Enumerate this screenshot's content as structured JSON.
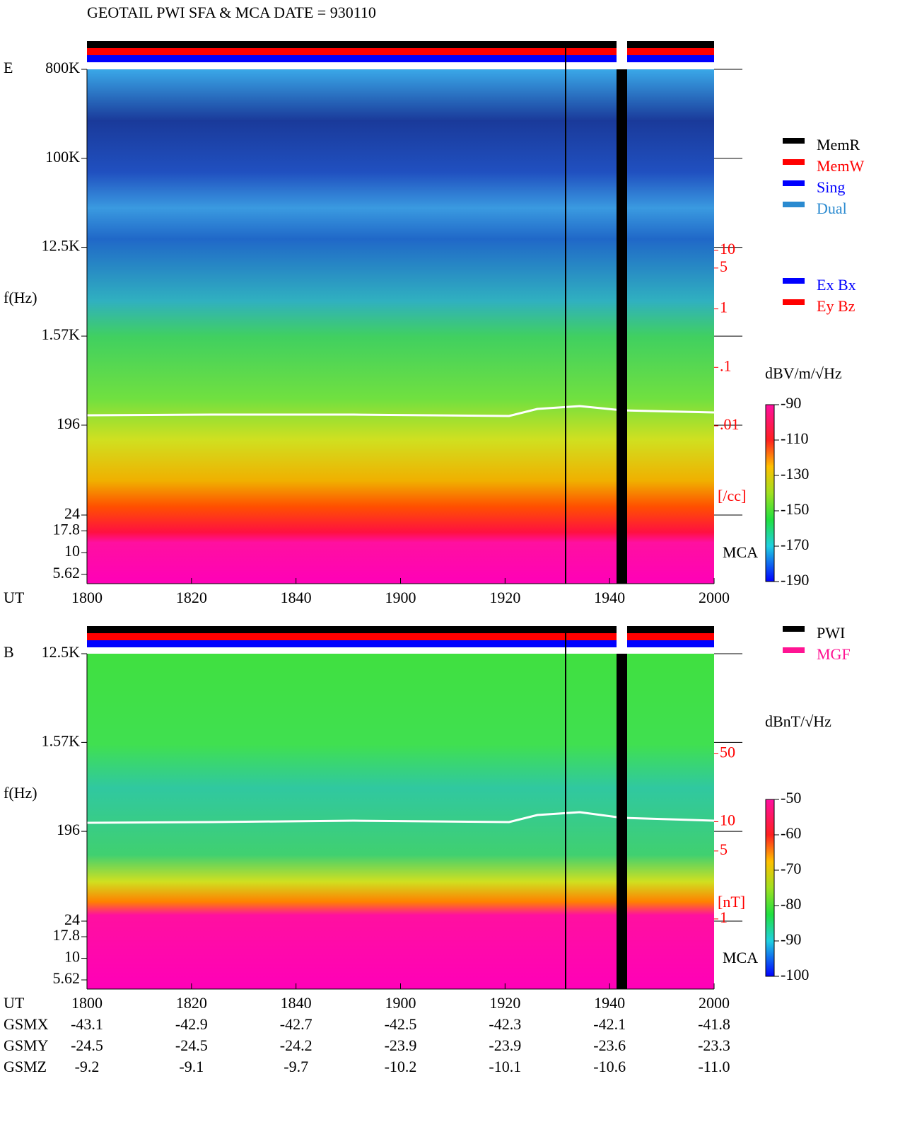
{
  "title": "GEOTAIL  PWI SFA & MCA   DATE = 930110",
  "chart_data": [
    {
      "type": "spectrogram",
      "panel_label": "E",
      "y_label": "f(Hz)",
      "x_label": "UT",
      "log_y": true,
      "categories": [
        "1800",
        "1820",
        "1840",
        "1900",
        "1920",
        "1940",
        "2000"
      ],
      "ylim": [
        24,
        800000
      ],
      "yticks": [
        {
          "value": 800000,
          "label": "800K"
        },
        {
          "value": 100000,
          "label": "100K"
        },
        {
          "value": 12500,
          "label": "12.5K"
        },
        {
          "value": 1570,
          "label": "1.57K"
        },
        196,
        24
      ],
      "mca_label": "MCA",
      "mca_ylim": [
        4.4,
        27
      ],
      "mca_yticks": [
        17.8,
        10,
        5.62
      ],
      "colorbar_label": "dBV/m/√Hz",
      "colorbar_lim": [
        -190,
        -90
      ],
      "colorbar_ticks": [
        -90,
        -110,
        -130,
        -150,
        -170,
        -190
      ],
      "aux_ylim": [
        2e-05,
        12500
      ],
      "aux_ticks": [
        10,
        5,
        1,
        {
          "value": 0.1,
          "label": ".1"
        },
        {
          "value": 0.01,
          "label": ".01"
        }
      ],
      "aux_unit": "[/cc]",
      "legend": [
        {
          "name": "MemR",
          "color": "#000000"
        },
        {
          "name": "MemW",
          "color": "#ff0000"
        },
        {
          "name": "Sing",
          "color": "#0000ff"
        },
        {
          "name": "Dual",
          "color": "#2a8ad0"
        }
      ],
      "legend2": [
        {
          "name": "Ex Bx",
          "color": "#0000ff"
        },
        {
          "name": "Ey Bz",
          "color": "#ff0000"
        }
      ]
    },
    {
      "type": "spectrogram",
      "panel_label": "B",
      "y_label": "f(Hz)",
      "x_label": "UT",
      "log_y": true,
      "categories": [
        "1800",
        "1820",
        "1840",
        "1900",
        "1920",
        "1940",
        "2000"
      ],
      "ylim": [
        24,
        12500
      ],
      "yticks": [
        {
          "value": 12500,
          "label": "12.5K"
        },
        {
          "value": 1570,
          "label": "1.57K"
        },
        196,
        24
      ],
      "mca_label": "MCA",
      "mca_ylim": [
        4.4,
        27
      ],
      "mca_yticks": [
        17.8,
        10,
        5.62
      ],
      "colorbar_label": "dBnT/√Hz",
      "colorbar_lim": [
        -100,
        -50
      ],
      "colorbar_ticks": [
        -50,
        -60,
        -70,
        -80,
        -90,
        -100
      ],
      "aux_ylim": [
        0.19,
        535
      ],
      "aux_ticks": [
        50,
        10,
        5,
        1
      ],
      "aux_unit": "[nT]",
      "legend": [
        {
          "name": "PWI",
          "color": "#000000"
        },
        {
          "name": "MGF",
          "color": "#ff1493"
        }
      ]
    }
  ],
  "orbit": {
    "row_labels": [
      "GSMX",
      "GSMY",
      "GSMZ"
    ],
    "rows": [
      [
        "-43.1",
        "-42.9",
        "-42.7",
        "-42.5",
        "-42.3",
        "-42.1",
        "-41.8"
      ],
      [
        "-24.5",
        "-24.5",
        "-24.2",
        "-23.9",
        "-23.9",
        "-23.6",
        "-23.3"
      ],
      [
        "-9.2",
        "-9.1",
        "-9.7",
        "-10.2",
        "-10.1",
        "-10.6",
        "-11.0"
      ]
    ]
  }
}
